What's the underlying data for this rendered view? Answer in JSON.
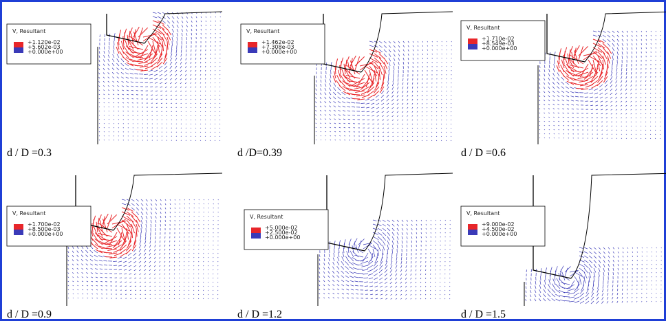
{
  "panels": [
    {
      "legend_title": "V, Resultant",
      "legend_values": [
        "+1.120e-02",
        "+5.602e-03",
        "+0.000e+00"
      ],
      "caption": "d / D =0.3"
    },
    {
      "legend_title": "V, Resultant",
      "legend_values": [
        "+1.462e-02",
        "+7.308e-03",
        "+0.000e+00"
      ],
      "caption": "d /D=0.39"
    },
    {
      "legend_title": "V, Resultant",
      "legend_values": [
        "+1.710e-02",
        "+8.549e-03",
        "+0.000e+00"
      ],
      "caption": "d / D =0.6"
    },
    {
      "legend_title": "V, Resultant",
      "legend_values": [
        "+1.700e-02",
        "+8.500e-03",
        "+0.000e+00"
      ],
      "caption": "d / D =0.9"
    },
    {
      "legend_title": "V, Resultant",
      "legend_values": [
        "+5.000e-02",
        "+2.500e-02",
        "+0.000e+00"
      ],
      "caption": "d / D =1.2"
    },
    {
      "legend_title": "V, Resultant",
      "legend_values": [
        "+9.000e-02",
        "+4.500e-02",
        "+0.000e+00"
      ],
      "caption": "d / D =1.5"
    }
  ]
}
